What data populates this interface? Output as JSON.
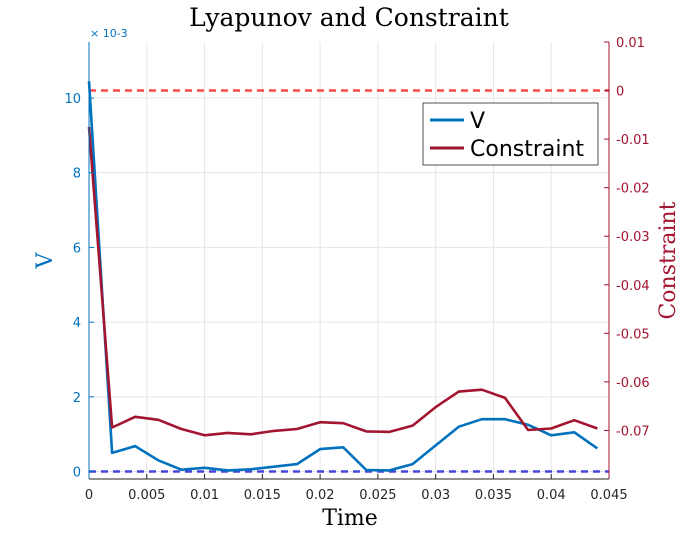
{
  "chart_data": {
    "type": "line",
    "title": "Lyapunov and Constraint",
    "xlabel": "Time",
    "ylabel_left": "V",
    "ylabel_right": "Constraint",
    "left_axis_exponent": "× 10-3",
    "xlim": [
      0,
      0.045
    ],
    "ylim_left": [
      -0.0002,
      0.0115
    ],
    "ylim_right": [
      -0.08,
      0.01
    ],
    "x_ticks": [
      "0",
      "0.005",
      "0.01",
      "0.015",
      "0.02",
      "0.025",
      "0.03",
      "0.035",
      "0.04",
      "0.045"
    ],
    "x_tick_values": [
      0,
      0.005,
      0.01,
      0.015,
      0.02,
      0.025,
      0.03,
      0.035,
      0.04,
      0.045
    ],
    "y_left_ticks": [
      "0",
      "2",
      "4",
      "6",
      "8",
      "10"
    ],
    "y_left_tick_values": [
      0,
      0.002,
      0.004,
      0.006,
      0.008,
      0.01
    ],
    "y_right_ticks": [
      "0.01",
      "0",
      "-0.01",
      "-0.02",
      "-0.03",
      "-0.04",
      "-0.05",
      "-0.06",
      "-0.07"
    ],
    "y_right_tick_values": [
      0.01,
      0,
      -0.01,
      -0.02,
      -0.03,
      -0.04,
      -0.05,
      -0.06,
      -0.07
    ],
    "grid": true,
    "legend_position": "top-right",
    "colors": {
      "left_axis": "#0072bd",
      "right_axis": "#a2142f",
      "v_line": "#0072bd",
      "constraint_line": "#a2142f",
      "zero_constraint_line": "#ff3333",
      "zero_v_line": "#3333dd",
      "grid": "#e6e6e6"
    },
    "series": [
      {
        "name": "V",
        "axis": "left",
        "x": [
          0,
          0.002,
          0.004,
          0.006,
          0.008,
          0.01,
          0.012,
          0.014,
          0.016,
          0.018,
          0.02,
          0.022,
          0.024,
          0.026,
          0.028,
          0.03,
          0.032,
          0.034,
          0.036,
          0.038,
          0.04,
          0.042,
          0.044
        ],
        "y": [
          0.01045,
          0.0005,
          0.00068,
          0.0003,
          5e-05,
          0.0001,
          3e-05,
          6e-05,
          0.00013,
          0.0002,
          0.0006,
          0.00065,
          4e-05,
          3e-05,
          0.0002,
          0.0007,
          0.0012,
          0.0014,
          0.0014,
          0.00125,
          0.00097,
          0.00105,
          0.00062
        ]
      },
      {
        "name": "Constraint",
        "axis": "right",
        "x": [
          0,
          0.002,
          0.004,
          0.006,
          0.008,
          0.01,
          0.012,
          0.014,
          0.016,
          0.018,
          0.02,
          0.022,
          0.024,
          0.026,
          0.028,
          0.03,
          0.032,
          0.034,
          0.036,
          0.038,
          0.04,
          0.042,
          0.044
        ],
        "y": [
          -0.0075,
          -0.0694,
          -0.0672,
          -0.0678,
          -0.0697,
          -0.071,
          -0.0705,
          -0.0708,
          -0.0701,
          -0.0697,
          -0.0683,
          -0.0685,
          -0.0702,
          -0.0703,
          -0.069,
          -0.0652,
          -0.062,
          -0.0616,
          -0.0633,
          -0.0699,
          -0.0696,
          -0.0679,
          -0.0696
        ]
      }
    ],
    "reference_lines": [
      {
        "axis": "right",
        "y": 0,
        "style": "dashed",
        "color": "#ff3333"
      },
      {
        "axis": "left",
        "y": 0,
        "style": "dashed",
        "color": "#3333dd"
      }
    ]
  }
}
